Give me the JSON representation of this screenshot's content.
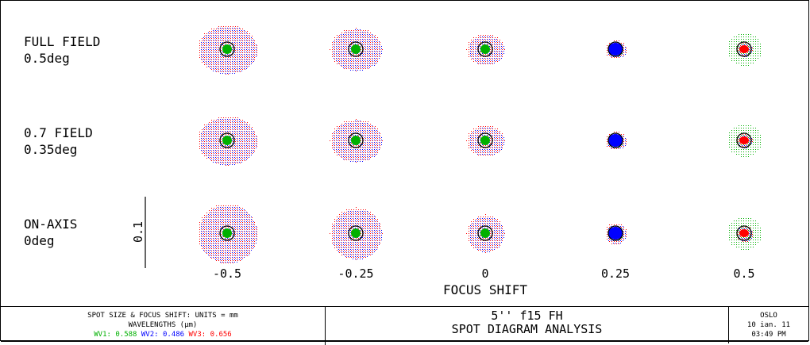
{
  "rows": [
    {
      "label": "FULL FIELD",
      "value": "0.5deg"
    },
    {
      "label": "0.7 FIELD",
      "value": "0.35deg"
    },
    {
      "label": "ON-AXIS",
      "value": "0deg"
    }
  ],
  "focus_shifts": [
    "-0.5",
    "-0.25",
    "0",
    "0.25",
    "0.5"
  ],
  "xaxis_title": "FOCUS SHIFT",
  "scale_bar_label": "0.1",
  "footer": {
    "units_line": "SPOT SIZE & FOCUS SHIFT: UNITS = mm",
    "wavelengths_line": "WAVELENGTHS (µm)",
    "wv1_label": "WV1:",
    "wv1_value": "0.588",
    "wv2_label": "WV2:",
    "wv2_value": "0.486",
    "wv3_label": "WV3:",
    "wv3_value": "0.656",
    "title_line1": "5'' f15 FH",
    "title_line2": "SPOT DIAGRAM ANALYSIS",
    "program": "OSLO",
    "date": "10 ian. 11",
    "time": "03:49 PM"
  },
  "colors": {
    "wv1": "#00b000",
    "wv2": "#0000ff",
    "wv3": "#ff0000"
  }
}
